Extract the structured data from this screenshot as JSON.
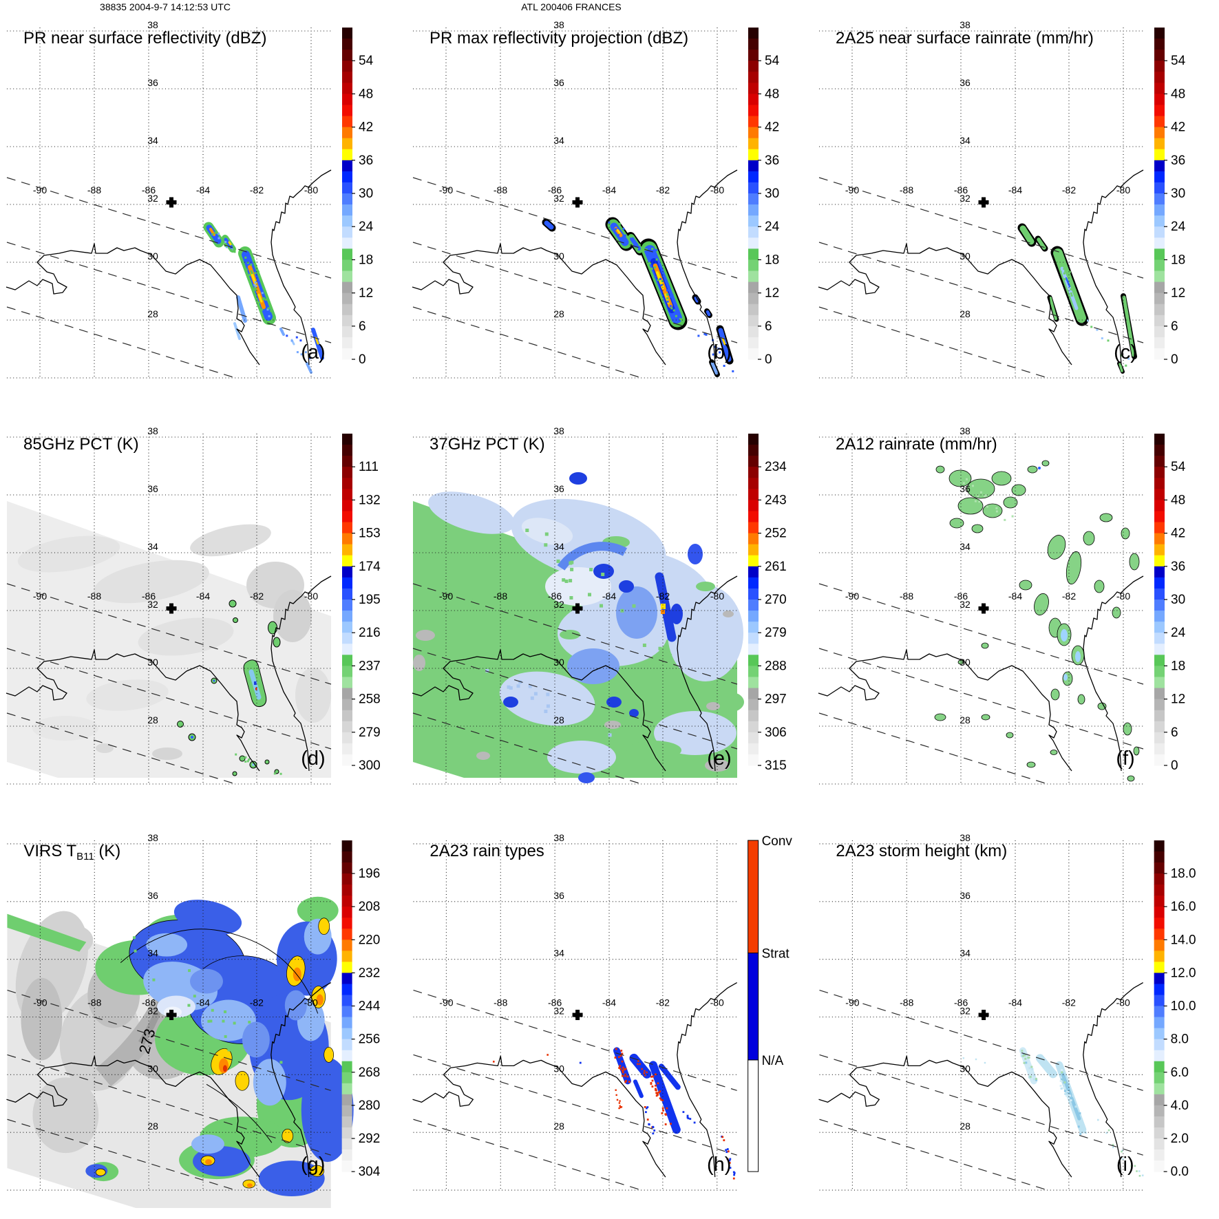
{
  "header": {
    "left_title": "38835 2004-9-7 14:12:53 UTC",
    "center_title": "ATL 200406 FRANCES"
  },
  "map": {
    "lat_labels": [
      "38",
      "36",
      "34",
      "32",
      "30",
      "28"
    ],
    "lon_labels": [
      "-90",
      "-88",
      "-86",
      "-84",
      "-82",
      "-80"
    ]
  },
  "annotations": {
    "virs_contour_label": "273"
  },
  "palette": {
    "cells": [
      "#260000",
      "#450000",
      "#640000",
      "#8c0000",
      "#a60000",
      "#bf0000",
      "#d90000",
      "#f20d00",
      "#ff3800",
      "#ff7a00",
      "#ffb300",
      "#ffff00",
      "#0000c8",
      "#0028ff",
      "#2951ff",
      "#4f7dff",
      "#75a8ff",
      "#9cc8ff",
      "#c2dcff",
      "#e4efff",
      "#58c758",
      "#74d274",
      "#9fe29f",
      "#a6a6a6",
      "#b5b5b5",
      "#c6c6c6",
      "#d6d6d6",
      "#e3e3e3",
      "#eeeeee",
      "#f8f8f8"
    ],
    "convective": "#f43d00",
    "stratiform": "#0000dd",
    "na": "#ffffff"
  },
  "panels": [
    {
      "letter": "(a)",
      "title_parts": [
        {
          "t": "PR near surface reflectivity (dBZ)"
        }
      ],
      "ticks": [
        "54",
        "48",
        "42",
        "36",
        "30",
        "24",
        "18",
        "12",
        "6",
        "0"
      ]
    },
    {
      "letter": "(b)",
      "title_parts": [
        {
          "t": "PR max reflectivity projection (dBZ)"
        }
      ],
      "ticks": [
        "54",
        "48",
        "42",
        "36",
        "30",
        "24",
        "18",
        "12",
        "6",
        "0"
      ]
    },
    {
      "letter": "(c)",
      "title_parts": [
        {
          "t": "2A25 near surface rainrate (mm/hr)"
        }
      ],
      "ticks": [
        "54",
        "48",
        "42",
        "36",
        "30",
        "24",
        "18",
        "12",
        "6",
        "0"
      ]
    },
    {
      "letter": "(d)",
      "title_parts": [
        {
          "t": "85GHz PCT (K)"
        }
      ],
      "ticks": [
        "111",
        "132",
        "153",
        "174",
        "195",
        "216",
        "237",
        "258",
        "279",
        "300"
      ]
    },
    {
      "letter": "(e)",
      "title_parts": [
        {
          "t": "37GHz PCT (K)"
        }
      ],
      "ticks": [
        "234",
        "243",
        "252",
        "261",
        "270",
        "279",
        "288",
        "297",
        "306",
        "315"
      ]
    },
    {
      "letter": "(f)",
      "title_parts": [
        {
          "t": "2A12 rainrate (mm/hr)"
        }
      ],
      "ticks": [
        "54",
        "48",
        "42",
        "36",
        "30",
        "24",
        "18",
        "12",
        "6",
        "0"
      ]
    },
    {
      "letter": "(g)",
      "title_parts": [
        {
          "t": "VIRS T"
        },
        {
          "t": "B11",
          "sub": true
        },
        {
          "t": " (K)"
        }
      ],
      "ticks": [
        "196",
        "208",
        "220",
        "232",
        "244",
        "256",
        "268",
        "280",
        "292",
        "304"
      ]
    },
    {
      "letter": "(h)",
      "title_parts": [
        {
          "t": "2A23 rain types"
        }
      ],
      "rain_segments": [
        {
          "label": "Conv",
          "color": "#f43d00",
          "frac": 0.34
        },
        {
          "label": "Strat",
          "color": "#0000dd",
          "frac": 0.323
        },
        {
          "label": "N/A",
          "color": "#ffffff",
          "frac": 0.337
        }
      ]
    },
    {
      "letter": "(i)",
      "title_parts": [
        {
          "t": "2A23 storm height (km)"
        }
      ],
      "ticks": [
        "18.0",
        "16.0",
        "14.0",
        "12.0",
        "10.0",
        "8.0",
        "6.0",
        "4.0",
        "2.0",
        "0.0"
      ]
    }
  ],
  "chart_data": {
    "type": "heatmap",
    "geo": {
      "lon_range": [
        -91.3,
        -79.3
      ],
      "lat_range": [
        26.1,
        38.1
      ],
      "grid_interval_deg": 2,
      "storm_center_lonlat": [
        -85.2,
        32.1
      ],
      "region": "Southeastern United States / Gulf of Mexico / Florida"
    },
    "panels": [
      {
        "panel": "a",
        "title": "PR near surface reflectivity (dBZ)",
        "units": "dBZ",
        "colorbar_ticks": [
          54,
          48,
          42,
          36,
          30,
          24,
          18,
          12,
          6,
          0
        ]
      },
      {
        "panel": "b",
        "title": "PR max reflectivity projection (dBZ)",
        "units": "dBZ",
        "colorbar_ticks": [
          54,
          48,
          42,
          36,
          30,
          24,
          18,
          12,
          6,
          0
        ]
      },
      {
        "panel": "c",
        "title": "2A25 near surface rainrate (mm/hr)",
        "units": "mm/hr",
        "colorbar_ticks": [
          54,
          48,
          42,
          36,
          30,
          24,
          18,
          12,
          6,
          0
        ]
      },
      {
        "panel": "d",
        "title": "85GHz PCT (K)",
        "units": "K",
        "colorbar_ticks": [
          111,
          132,
          153,
          174,
          195,
          216,
          237,
          258,
          279,
          300
        ]
      },
      {
        "panel": "e",
        "title": "37GHz PCT (K)",
        "units": "K",
        "colorbar_ticks": [
          234,
          243,
          252,
          261,
          270,
          279,
          288,
          297,
          306,
          315
        ]
      },
      {
        "panel": "f",
        "title": "2A12 rainrate (mm/hr)",
        "units": "mm/hr",
        "colorbar_ticks": [
          54,
          48,
          42,
          36,
          30,
          24,
          18,
          12,
          6,
          0
        ]
      },
      {
        "panel": "g",
        "title": "VIRS TB11 (K)",
        "units": "K",
        "colorbar_ticks": [
          196,
          208,
          220,
          232,
          244,
          256,
          268,
          280,
          292,
          304
        ]
      },
      {
        "panel": "h",
        "title": "2A23 rain types",
        "units": "category",
        "categories": [
          "Conv",
          "Strat",
          "N/A"
        ]
      },
      {
        "panel": "i",
        "title": "2A23 storm height (km)",
        "units": "km",
        "colorbar_ticks": [
          18,
          16,
          14,
          12,
          10,
          8,
          6,
          4,
          2,
          0
        ]
      }
    ]
  }
}
